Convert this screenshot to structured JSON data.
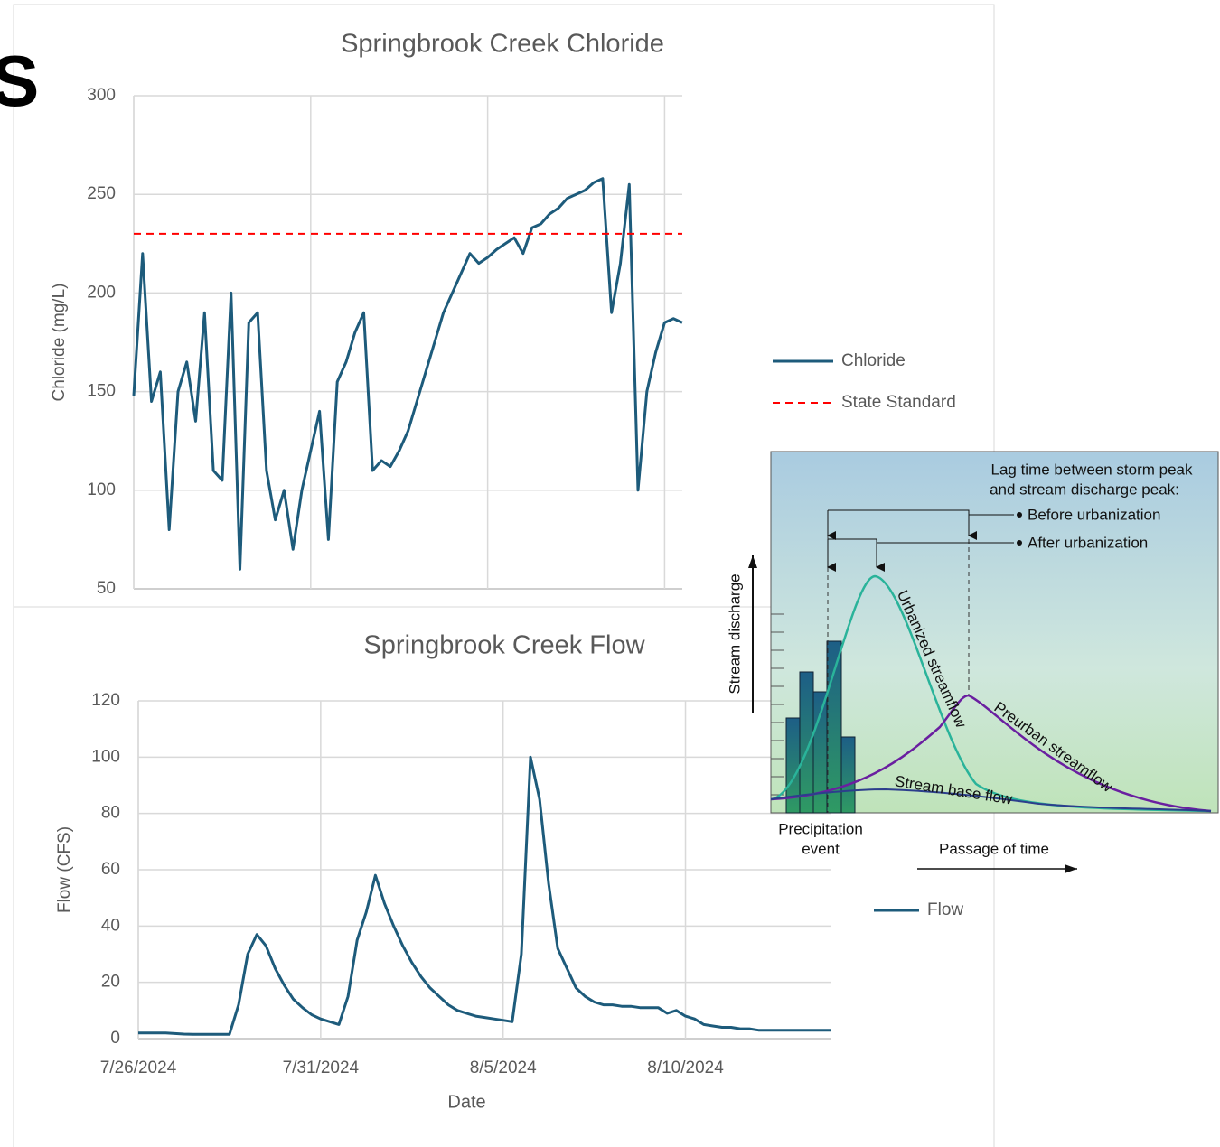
{
  "cropped_text": "S",
  "chart_data": [
    {
      "type": "line",
      "title": "Springbrook Creek Chloride",
      "y_label": "Chloride (mg/L)",
      "ylim": [
        50,
        300
      ],
      "yticks": [
        50,
        100,
        150,
        200,
        250,
        300
      ],
      "grid": true,
      "series": [
        {
          "name": "Chloride",
          "color": "#1d5b7b",
          "linestyle": "solid",
          "values": [
            148,
            220,
            145,
            160,
            80,
            150,
            165,
            135,
            190,
            110,
            105,
            200,
            60,
            185,
            190,
            110,
            85,
            100,
            70,
            100,
            120,
            140,
            75,
            155,
            165,
            180,
            190,
            110,
            115,
            112,
            120,
            130,
            145,
            160,
            175,
            190,
            200,
            210,
            220,
            215,
            218,
            222,
            225,
            228,
            220,
            233,
            235,
            240,
            243,
            248,
            250,
            252,
            256,
            258,
            190,
            215,
            255,
            100,
            150,
            170,
            185,
            187,
            185
          ]
        },
        {
          "name": "State Standard",
          "color": "#ff0000",
          "linestyle": "dashed",
          "values": [
            230,
            230,
            230,
            230,
            230,
            230,
            230,
            230,
            230,
            230,
            230,
            230,
            230,
            230,
            230,
            230,
            230,
            230,
            230,
            230,
            230,
            230,
            230,
            230,
            230,
            230,
            230,
            230,
            230,
            230,
            230,
            230,
            230,
            230,
            230,
            230,
            230,
            230,
            230,
            230,
            230,
            230,
            230,
            230,
            230,
            230,
            230,
            230,
            230,
            230,
            230,
            230,
            230,
            230,
            230,
            230,
            230,
            230,
            230,
            230,
            230,
            230,
            230
          ]
        }
      ]
    },
    {
      "type": "line",
      "title": "Springbrook Creek Flow",
      "y_label": "Flow (CFS)",
      "x_label": "Date",
      "ylim": [
        0,
        120
      ],
      "yticks": [
        0,
        20,
        40,
        60,
        80,
        100,
        120
      ],
      "grid": true,
      "categories": [
        "7/26/2024",
        null,
        null,
        null,
        null,
        null,
        null,
        null,
        null,
        null,
        null,
        null,
        null,
        null,
        null,
        null,
        null,
        null,
        null,
        null,
        "7/31/2024",
        null,
        null,
        null,
        null,
        null,
        null,
        null,
        null,
        null,
        null,
        null,
        null,
        null,
        null,
        null,
        null,
        null,
        null,
        null,
        "8/5/2024",
        null,
        null,
        null,
        null,
        null,
        null,
        null,
        null,
        null,
        null,
        null,
        null,
        null,
        null,
        null,
        null,
        null,
        null,
        null,
        "8/10/2024",
        null,
        null,
        null,
        null,
        null,
        null,
        null,
        null,
        null,
        null,
        null,
        null,
        null,
        null,
        null,
        null
      ],
      "series": [
        {
          "name": "Flow",
          "color": "#1d5b7b",
          "linestyle": "solid",
          "values": [
            2,
            2,
            2,
            2,
            1.8,
            1.6,
            1.5,
            1.5,
            1.5,
            1.5,
            1.5,
            12,
            30,
            37,
            33,
            25,
            19,
            14,
            11,
            8.5,
            7,
            6,
            5,
            15,
            35,
            45,
            58,
            48,
            40,
            33,
            27,
            22,
            18,
            15,
            12,
            10,
            9,
            8,
            7.5,
            7,
            6.5,
            6,
            30,
            100,
            85,
            55,
            32,
            25,
            18,
            15,
            13,
            12,
            12,
            11.5,
            11.5,
            11,
            11,
            11,
            9,
            10,
            8,
            7,
            5,
            4.5,
            4,
            4,
            3.5,
            3.5,
            3,
            3,
            3,
            3,
            3,
            3,
            3,
            3,
            3
          ]
        }
      ]
    }
  ],
  "diagram": {
    "lag_title": [
      "Lag time between storm peak",
      "and stream discharge peak:"
    ],
    "before_label": "Before urbanization",
    "after_label": "After urbanization",
    "y_axis_label": "Stream discharge",
    "event_label": [
      "Precipitation",
      "event"
    ],
    "x_axis_label": "Passage of time",
    "curve_labels": [
      "Urbanized streamflow",
      "Preurban streamflow",
      "Stream base flow"
    ]
  }
}
